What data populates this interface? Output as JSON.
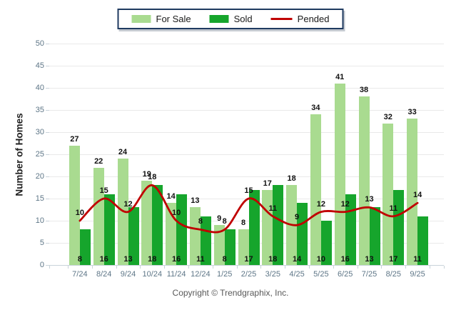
{
  "legend": {
    "border_color": "#1f3a60"
  },
  "chart_data": {
    "type": "bar",
    "title": "",
    "xlabel": "",
    "ylabel": "Number of Homes",
    "ylim": [
      0,
      50
    ],
    "ytick_step": 5,
    "grid": true,
    "legend_position": "top-center",
    "categories": [
      "7/24",
      "8/24",
      "9/24",
      "10/24",
      "11/24",
      "12/24",
      "1/25",
      "2/25",
      "3/25",
      "4/25",
      "5/25",
      "6/25",
      "7/25",
      "8/25",
      "9/25"
    ],
    "series": [
      {
        "name": "For Sale",
        "type": "bar",
        "color": "#a9db90",
        "values": [
          27,
          22,
          24,
          19,
          14,
          13,
          9,
          8,
          17,
          18,
          34,
          41,
          38,
          32,
          33
        ]
      },
      {
        "name": "Sold",
        "type": "bar",
        "color": "#16a52c",
        "values": [
          8,
          16,
          13,
          18,
          16,
          11,
          8,
          17,
          18,
          14,
          10,
          16,
          13,
          17,
          11
        ]
      },
      {
        "name": "Pended",
        "type": "line",
        "color": "#c00000",
        "values": [
          10,
          15,
          12,
          18,
          10,
          8,
          8,
          15,
          11,
          9,
          12,
          12,
          13,
          11,
          14
        ]
      }
    ]
  },
  "footer": {
    "copyright": "Copyright © Trendgraphix, Inc."
  }
}
